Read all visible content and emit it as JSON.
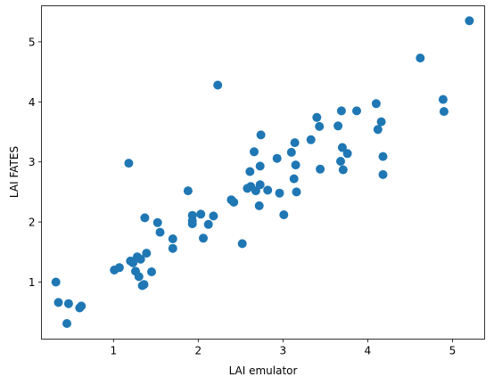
{
  "chart_data": {
    "type": "scatter",
    "title": "",
    "xlabel": "LAI emulator",
    "ylabel": "LAI FATES",
    "xlim": [
      0.15,
      5.38
    ],
    "ylim": [
      0.05,
      5.6
    ],
    "xticks": [
      1,
      2,
      3,
      4,
      5
    ],
    "yticks": [
      1,
      2,
      3,
      4,
      5
    ],
    "grid": false,
    "legend": "none",
    "marker_color": "#1f77b4",
    "series": [
      {
        "points": [
          [
            0.32,
            1.0
          ],
          [
            0.35,
            0.66
          ],
          [
            0.45,
            0.31
          ],
          [
            0.47,
            0.64
          ],
          [
            0.6,
            0.57
          ],
          [
            0.62,
            0.6
          ],
          [
            1.01,
            1.2
          ],
          [
            1.07,
            1.24
          ],
          [
            1.18,
            2.98
          ],
          [
            1.2,
            1.35
          ],
          [
            1.23,
            1.32
          ],
          [
            1.26,
            1.18
          ],
          [
            1.28,
            1.42
          ],
          [
            1.3,
            1.09
          ],
          [
            1.32,
            1.38
          ],
          [
            1.34,
            0.94
          ],
          [
            1.36,
            0.96
          ],
          [
            1.37,
            2.07
          ],
          [
            1.39,
            1.48
          ],
          [
            1.45,
            1.17
          ],
          [
            1.52,
            1.99
          ],
          [
            1.55,
            1.83
          ],
          [
            1.7,
            1.72
          ],
          [
            1.7,
            1.56
          ],
          [
            1.88,
            2.52
          ],
          [
            1.93,
            2.11
          ],
          [
            1.93,
            1.97
          ],
          [
            1.93,
            2.02
          ],
          [
            2.03,
            2.13
          ],
          [
            2.06,
            1.73
          ],
          [
            2.12,
            1.96
          ],
          [
            2.18,
            2.1
          ],
          [
            2.23,
            4.28
          ],
          [
            2.39,
            2.37
          ],
          [
            2.42,
            2.33
          ],
          [
            2.52,
            1.64
          ],
          [
            2.58,
            2.56
          ],
          [
            2.61,
            2.84
          ],
          [
            2.62,
            2.59
          ],
          [
            2.66,
            3.17
          ],
          [
            2.68,
            2.52
          ],
          [
            2.72,
            2.27
          ],
          [
            2.73,
            2.93
          ],
          [
            2.73,
            2.62
          ],
          [
            2.74,
            3.45
          ],
          [
            2.82,
            2.53
          ],
          [
            2.93,
            3.06
          ],
          [
            2.96,
            2.48
          ],
          [
            3.01,
            2.12
          ],
          [
            3.1,
            3.16
          ],
          [
            3.13,
            2.72
          ],
          [
            3.14,
            3.32
          ],
          [
            3.15,
            2.95
          ],
          [
            3.16,
            2.5
          ],
          [
            3.33,
            3.37
          ],
          [
            3.4,
            3.74
          ],
          [
            3.43,
            3.59
          ],
          [
            3.44,
            2.88
          ],
          [
            3.65,
            3.6
          ],
          [
            3.68,
            3.01
          ],
          [
            3.69,
            3.85
          ],
          [
            3.7,
            3.24
          ],
          [
            3.71,
            2.87
          ],
          [
            3.76,
            3.14
          ],
          [
            3.87,
            3.85
          ],
          [
            4.1,
            3.97
          ],
          [
            4.12,
            3.54
          ],
          [
            4.16,
            3.67
          ],
          [
            4.18,
            3.09
          ],
          [
            4.18,
            2.79
          ],
          [
            4.62,
            4.73
          ],
          [
            4.89,
            4.04
          ],
          [
            4.9,
            3.84
          ],
          [
            5.2,
            5.35
          ]
        ]
      }
    ]
  }
}
